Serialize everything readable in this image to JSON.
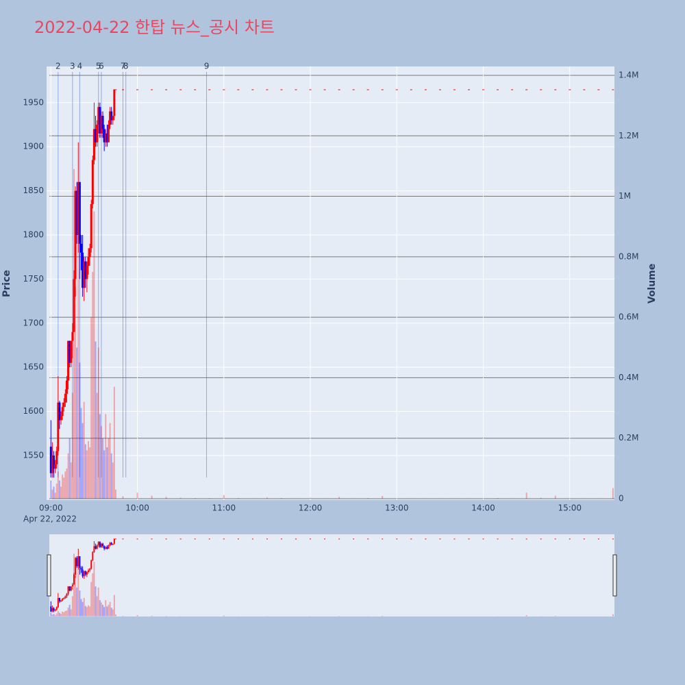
{
  "chart_data": {
    "type": "candlestick",
    "title": "2022-04-22 한탑 뉴스_공시 차트",
    "y_label": "Price",
    "y2_label": "Volume",
    "x_date_label": "Apr 22, 2022",
    "increasing_color": "#ff0000",
    "decreasing_color": "#0000ff",
    "x": [
      "09:00",
      "09:01",
      "09:02",
      "09:03",
      "09:04",
      "09:05",
      "09:06",
      "09:07",
      "09:08",
      "09:09",
      "09:10",
      "09:11",
      "09:12",
      "09:13",
      "09:14",
      "09:15",
      "09:16",
      "09:17",
      "09:18",
      "09:19",
      "09:20",
      "09:21",
      "09:22",
      "09:23",
      "09:24",
      "09:25",
      "09:26",
      "09:27",
      "09:28",
      "09:29",
      "09:30",
      "09:31",
      "09:32",
      "09:33",
      "09:34",
      "09:35",
      "09:36",
      "09:37",
      "09:38",
      "09:39",
      "09:40",
      "09:41",
      "09:42",
      "09:43",
      "09:44",
      "09:45",
      "09:50",
      "10:00",
      "10:10",
      "10:20",
      "10:30",
      "10:40",
      "10:50",
      "11:00",
      "11:10",
      "11:20",
      "11:30",
      "11:40",
      "11:50",
      "12:00",
      "12:10",
      "12:20",
      "12:30",
      "12:40",
      "12:50",
      "13:00",
      "13:10",
      "13:20",
      "13:30",
      "13:40",
      "13:50",
      "14:00",
      "14:10",
      "14:20",
      "14:30",
      "14:40",
      "14:50",
      "15:00",
      "15:10",
      "15:20",
      "15:30"
    ],
    "open": [
      1560,
      1530,
      1550,
      1535,
      1540,
      1555,
      1610,
      1590,
      1595,
      1605,
      1610,
      1620,
      1635,
      1680,
      1655,
      1680,
      1690,
      1750,
      1850,
      1800,
      1860,
      1790,
      1780,
      1740,
      1770,
      1750,
      1765,
      1775,
      1785,
      1835,
      1885,
      1920,
      1905,
      1925,
      1945,
      1915,
      1935,
      1920,
      1905,
      1915,
      1905,
      1925,
      1940,
      1930,
      1935,
      1965,
      1965,
      1965,
      1965,
      1965,
      1965,
      1965,
      1965,
      1965,
      1965,
      1965,
      1965,
      1965,
      1965,
      1965,
      1965,
      1965,
      1965,
      1965,
      1965,
      1965,
      1965,
      1965,
      1965,
      1965,
      1965,
      1965,
      1965,
      1965,
      1965,
      1965,
      1965,
      1965,
      1965,
      1965,
      1965
    ],
    "high": [
      1590,
      1565,
      1555,
      1545,
      1560,
      1640,
      1612,
      1600,
      1610,
      1615,
      1625,
      1640,
      1680,
      1680,
      1680,
      1700,
      1760,
      1855,
      1860,
      1905,
      1860,
      1800,
      1800,
      1775,
      1775,
      1770,
      1785,
      1790,
      1840,
      1890,
      1950,
      1935,
      1930,
      1950,
      1950,
      1940,
      1940,
      1925,
      1920,
      1925,
      1930,
      1945,
      1945,
      1935,
      1965,
      1965,
      1965,
      1965,
      1965,
      1965,
      1965,
      1965,
      1965,
      1965,
      1965,
      1965,
      1965,
      1965,
      1965,
      1965,
      1965,
      1965,
      1965,
      1965,
      1965,
      1965,
      1965,
      1965,
      1965,
      1965,
      1965,
      1965,
      1965,
      1965,
      1965,
      1965,
      1965,
      1965,
      1965,
      1965,
      1965
    ],
    "low": [
      1525,
      1525,
      1525,
      1530,
      1535,
      1550,
      1580,
      1585,
      1590,
      1600,
      1605,
      1610,
      1625,
      1650,
      1650,
      1660,
      1690,
      1730,
      1790,
      1780,
      1750,
      1760,
      1730,
      1725,
      1740,
      1735,
      1755,
      1765,
      1780,
      1830,
      1880,
      1900,
      1900,
      1915,
      1910,
      1910,
      1910,
      1895,
      1900,
      1900,
      1905,
      1920,
      1925,
      1925,
      1930,
      1965,
      1965,
      1965,
      1965,
      1965,
      1965,
      1965,
      1965,
      1965,
      1965,
      1965,
      1965,
      1965,
      1965,
      1965,
      1965,
      1965,
      1965,
      1965,
      1965,
      1965,
      1965,
      1965,
      1965,
      1965,
      1965,
      1965,
      1965,
      1965,
      1965,
      1965,
      1965,
      1965,
      1965,
      1965,
      1965
    ],
    "close": [
      1530,
      1550,
      1535,
      1540,
      1555,
      1610,
      1590,
      1595,
      1605,
      1610,
      1620,
      1635,
      1680,
      1655,
      1680,
      1690,
      1750,
      1850,
      1800,
      1860,
      1790,
      1780,
      1740,
      1770,
      1750,
      1765,
      1775,
      1785,
      1835,
      1885,
      1920,
      1905,
      1925,
      1945,
      1915,
      1935,
      1920,
      1905,
      1915,
      1905,
      1925,
      1940,
      1930,
      1935,
      1965,
      1965,
      1965,
      1965,
      1965,
      1965,
      1965,
      1965,
      1965,
      1965,
      1965,
      1965,
      1965,
      1965,
      1965,
      1965,
      1965,
      1965,
      1965,
      1965,
      1965,
      1965,
      1965,
      1965,
      1965,
      1965,
      1965,
      1965,
      1965,
      1965,
      1965,
      1965,
      1965,
      1965,
      1965,
      1965,
      1965
    ],
    "volume": [
      60000,
      30000,
      40000,
      20000,
      50000,
      90000,
      60000,
      40000,
      80000,
      70000,
      90000,
      100000,
      150000,
      200000,
      120000,
      350000,
      1090000,
      700000,
      500000,
      900000,
      450000,
      300000,
      250000,
      320000,
      180000,
      160000,
      190000,
      170000,
      600000,
      750000,
      950000,
      520000,
      350000,
      500000,
      280000,
      240000,
      200000,
      160000,
      280000,
      170000,
      200000,
      250000,
      150000,
      120000,
      370000,
      30000,
      8000,
      20000,
      10000,
      6000,
      3000,
      2000,
      2000,
      12000,
      2000,
      1000,
      4000,
      2000,
      1000,
      3000,
      1000,
      6000,
      1000,
      2000,
      9000,
      1000,
      1000,
      1000,
      1000,
      1000,
      1000,
      1000,
      2000,
      1000,
      20000,
      3000,
      10000,
      2000,
      1000,
      1000,
      35000
    ],
    "news": [
      {
        "label": "2",
        "x": "09:05"
      },
      {
        "label": "3",
        "x": "09:15"
      },
      {
        "label": "4",
        "x": "09:20"
      },
      {
        "label": "5",
        "x": "09:33"
      },
      {
        "label": "6",
        "x": "09:35"
      },
      {
        "label": "7",
        "x": "09:50"
      },
      {
        "label": "8",
        "x": "09:52"
      },
      {
        "label": "9",
        "x": "10:48"
      }
    ],
    "xlim": [
      "08:57",
      "15:31"
    ],
    "xticks": [
      "09:00",
      "10:00",
      "11:00",
      "12:00",
      "13:00",
      "14:00",
      "15:00"
    ],
    "ylim": [
      1499.5,
      1991
    ],
    "yticks": [
      1550,
      1600,
      1650,
      1700,
      1750,
      1800,
      1850,
      1900,
      1950
    ],
    "y2lim": [
      -4500,
      1429400
    ],
    "y2ticks": [
      0,
      {
        "value": 200000,
        "label": "0.2M"
      },
      {
        "value": 400000,
        "label": "0.4M"
      },
      {
        "value": 600000,
        "label": "0.6M"
      },
      {
        "value": 800000,
        "label": "0.8M"
      },
      {
        "value": 1000000,
        "label": "1M"
      },
      {
        "value": 1200000,
        "label": "1.2M"
      },
      {
        "value": 1400000,
        "label": "1.4M"
      }
    ],
    "grid": true,
    "range_slider": true
  }
}
